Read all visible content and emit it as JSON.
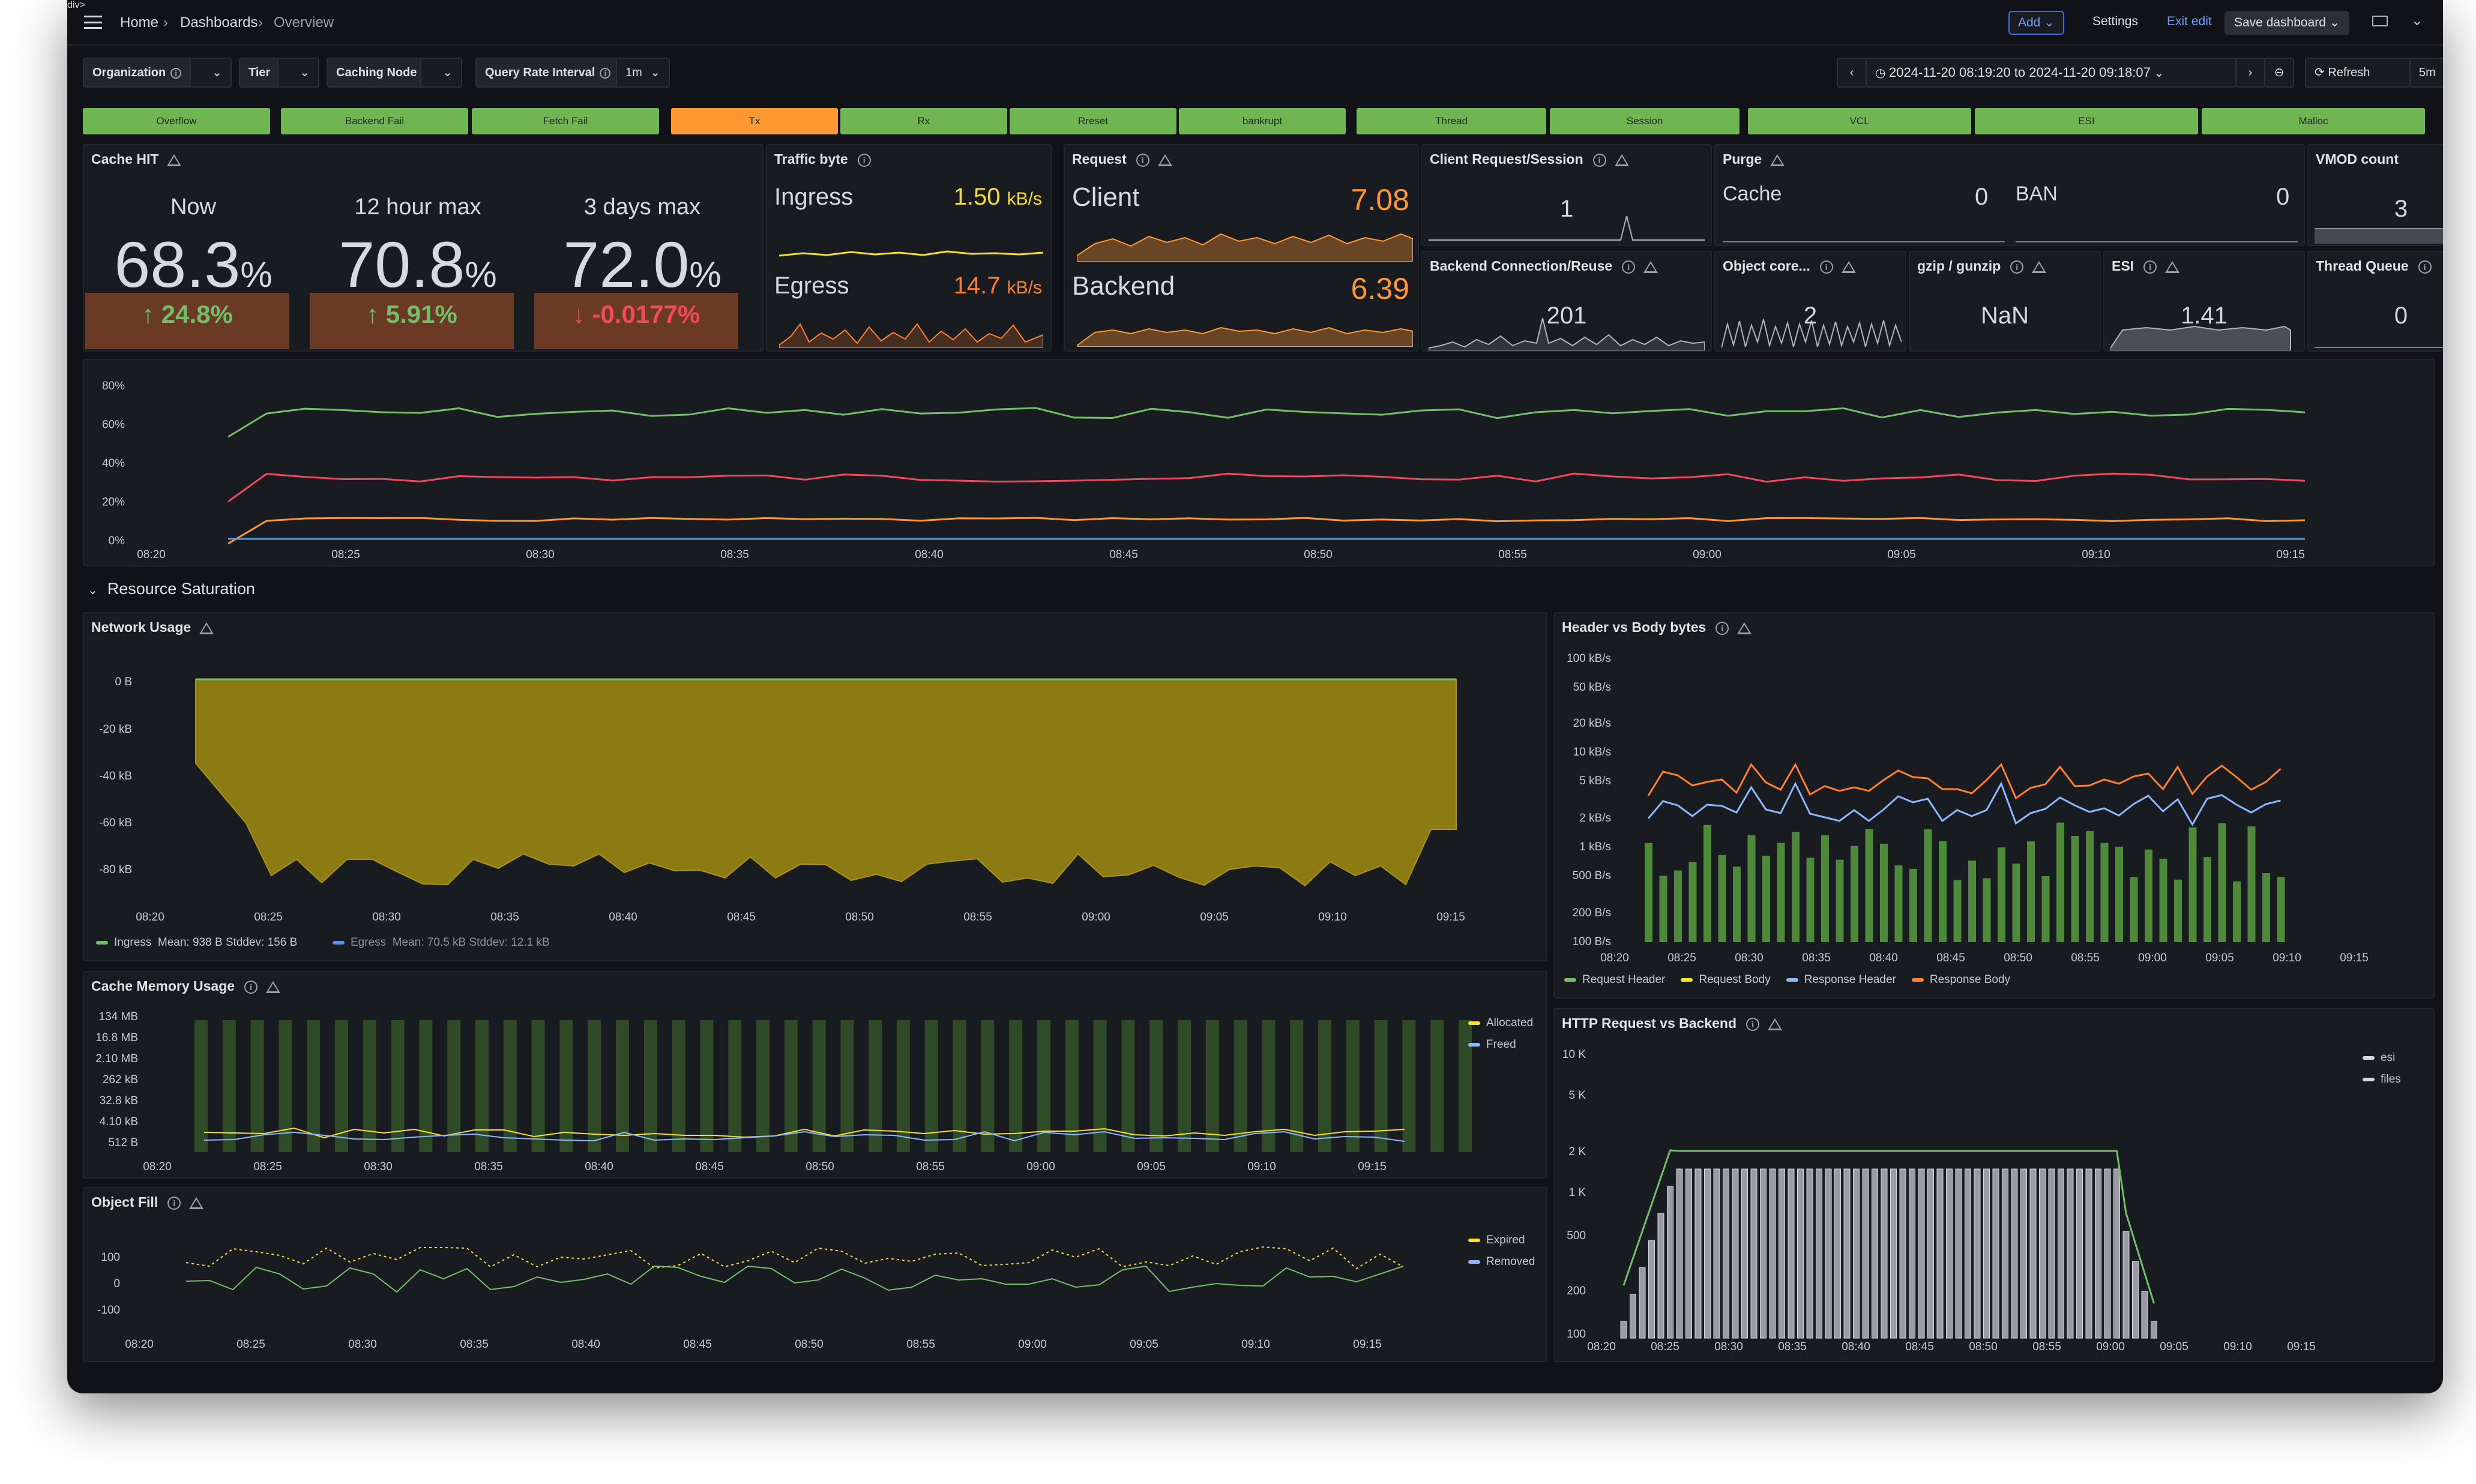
{
  "breadcrumb": {
    "home": "Home",
    "dashboards": "Dashboards",
    "current": "Overview"
  },
  "toolbar": {
    "add": "Add",
    "settings": "Settings",
    "exit_edit": "Exit edit",
    "save": "Save dashboard"
  },
  "vars": {
    "org_label": "Organization",
    "tier_label": "Tier",
    "node_label": "Caching Node",
    "qri_label": "Query Rate Interval",
    "qri_value": "1m"
  },
  "time": {
    "range": "2024-11-20 08:19:20 to 2024-11-20 09:18:07",
    "refresh": "Refresh",
    "refresh_interval": "5m"
  },
  "status_bars": [
    {
      "label": "Overflow",
      "color": "#6fb652"
    },
    {
      "label": "Backend Fail",
      "color": "#6fb652"
    },
    {
      "label": "Fetch Fail",
      "color": "#6fb652"
    },
    {
      "label": "Tx",
      "color": "#ff9830"
    },
    {
      "label": "Rx",
      "color": "#6fb652"
    },
    {
      "label": "Rreset",
      "color": "#6fb652"
    },
    {
      "label": "bankrupt",
      "color": "#6fb652"
    },
    {
      "label": "Thread",
      "color": "#6fb652"
    },
    {
      "label": "Session",
      "color": "#6fb652"
    },
    {
      "label": "VCL",
      "color": "#6fb652"
    },
    {
      "label": "ESI",
      "color": "#6fb652"
    },
    {
      "label": "Malloc",
      "color": "#6fb652"
    }
  ],
  "cache_hit": {
    "title": "Cache HIT",
    "cols": [
      {
        "label": "Now",
        "value": "68.3",
        "unit": "%",
        "delta": "24.8%",
        "dir": "up"
      },
      {
        "label": "12 hour max",
        "value": "70.8",
        "unit": "%",
        "delta": "5.91%",
        "dir": "up"
      },
      {
        "label": "3 days max",
        "value": "72.0",
        "unit": "%",
        "delta": "-0.0177%",
        "dir": "down"
      }
    ]
  },
  "traffic": {
    "title": "Traffic byte",
    "ingress_label": "Ingress",
    "ingress_value": "1.50",
    "ingress_unit": "kB/s",
    "egress_label": "Egress",
    "egress_value": "14.7",
    "egress_unit": "kB/s"
  },
  "request": {
    "title": "Request",
    "client_label": "Client",
    "client_value": "7.08",
    "backend_label": "Backend",
    "backend_value": "6.39"
  },
  "client_session": {
    "title": "Client Request/Session",
    "value": "1"
  },
  "purge": {
    "title": "Purge",
    "cache_label": "Cache",
    "cache_value": "0",
    "ban_label": "BAN",
    "ban_value": "0"
  },
  "vmod": {
    "title": "VMOD count",
    "value": "3"
  },
  "backend_conn": {
    "title": "Backend Connection/Reuse",
    "value": "201"
  },
  "object_core": {
    "title": "Object core...",
    "value": "2"
  },
  "gzip": {
    "title": "gzip / gunzip",
    "value": "NaN"
  },
  "esi_stat": {
    "title": "ESI",
    "value": "1.41"
  },
  "thread_queue": {
    "title": "Thread Queue",
    "value": "0"
  },
  "section": {
    "title": "Resource Saturation"
  },
  "time_ticks": [
    "08:20",
    "08:25",
    "08:30",
    "08:35",
    "08:40",
    "08:45",
    "08:50",
    "08:55",
    "09:00",
    "09:05",
    "09:10",
    "09:15"
  ],
  "top_chart": {
    "ylabels": [
      "80%",
      "60%",
      "40%",
      "20%",
      "0%"
    ]
  },
  "network": {
    "title": "Network Usage",
    "ylabels": [
      "0 B",
      "-20 kB",
      "-40 kB",
      "-60 kB",
      "-80 kB"
    ],
    "legend": [
      {
        "name": "Ingress",
        "stats": "Mean: 938 B   Stddev: 156 B",
        "color": "#73bf69"
      },
      {
        "name": "Egress",
        "stats": "Mean: 70.5 kB   Stddev: 12.1 kB",
        "color": "#5794f2"
      }
    ]
  },
  "header_body": {
    "title": "Header vs Body bytes",
    "ylabels": [
      "100 kB/s",
      "50 kB/s",
      "20 kB/s",
      "10 kB/s",
      "5 kB/s",
      "2 kB/s",
      "1 kB/s",
      "500 B/s",
      "200 B/s",
      "100 B/s"
    ],
    "legend": [
      {
        "name": "Request Header",
        "color": "#73bf69"
      },
      {
        "name": "Request Body",
        "color": "#fade2a"
      },
      {
        "name": "Response Header",
        "color": "#8ab8ff"
      },
      {
        "name": "Response Body",
        "color": "#ff7f2a"
      }
    ]
  },
  "cache_mem": {
    "title": "Cache Memory Usage",
    "ylabels": [
      "134 MB",
      "16.8 MB",
      "2.10 MB",
      "262 kB",
      "32.8 kB",
      "4.10 kB",
      "512 B"
    ],
    "legend": [
      {
        "name": "Allocated",
        "color": "#fade2a"
      },
      {
        "name": "Freed",
        "color": "#8ab8ff"
      }
    ]
  },
  "http_req": {
    "title": "HTTP Request vs Backend",
    "ylabels": [
      "10 K",
      "5 K",
      "2 K",
      "1 K",
      "500",
      "200",
      "100"
    ],
    "legend": [
      {
        "name": "esi",
        "color": "#d8d9de"
      },
      {
        "name": "files",
        "color": "#d8d9de"
      }
    ]
  },
  "object_fill": {
    "title": "Object Fill",
    "ylabels": [
      "100",
      "0",
      "-100"
    ],
    "legend": [
      {
        "name": "Expired",
        "color": "#fade2a"
      },
      {
        "name": "Removed",
        "color": "#8ab8ff"
      }
    ]
  }
}
